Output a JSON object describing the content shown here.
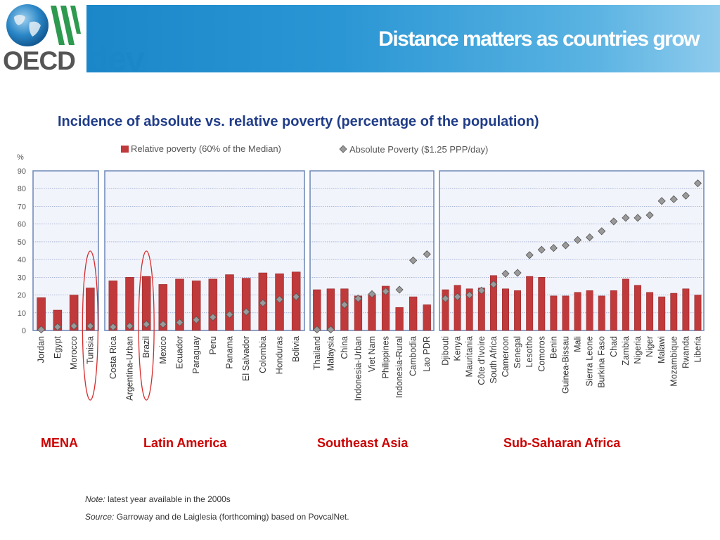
{
  "header": {
    "title": "Distance matters as countries grow",
    "logo_oecd": "OECD",
    "logo_dev": "dev",
    "accent_color": "#1b87c9"
  },
  "chart_title": "Incidence of absolute vs. relative poverty (percentage of the population)",
  "footer": {
    "note_label": "Note:",
    "note_text": "latest year  available in the 2000s",
    "source_label": "Source:",
    "source_text": "Garroway and de Laiglesia (forthcoming) based on PovcalNet."
  },
  "chart_data": {
    "type": "bar",
    "ylabel": "%",
    "ylim": [
      0,
      90
    ],
    "yticks": [
      0,
      10,
      20,
      30,
      40,
      50,
      60,
      70,
      80,
      90
    ],
    "legend": [
      {
        "name": "Relative poverty (60% of the Median)",
        "marker": "bar",
        "color": "#c0393b"
      },
      {
        "name": "Absolute Poverty ($1.25 PPP/day)",
        "marker": "diamond",
        "color": "#9a9a9a"
      }
    ],
    "groups": [
      {
        "name": "MENA",
        "categories": [
          "Jordan",
          "Egypt",
          "Morocco",
          "Tunisia"
        ],
        "relative": [
          18.5,
          11.5,
          20,
          24
        ],
        "absolute": [
          0.5,
          2,
          2.5,
          2.5
        ],
        "highlighted": [
          "Tunisia"
        ]
      },
      {
        "name": "Latin America",
        "categories": [
          "Costa Rica",
          "Argentina-Urban",
          "Brazil",
          "Mexico",
          "Ecuador",
          "Paraguay",
          "Peru",
          "Panama",
          "El Salvador",
          "Colombia",
          "Honduras",
          "Bolivia"
        ],
        "relative": [
          28,
          30,
          30.5,
          26,
          29,
          28,
          29,
          31.5,
          29.5,
          32.5,
          32,
          33
        ],
        "absolute": [
          2,
          2.5,
          3.5,
          3.5,
          4.5,
          6,
          7.5,
          9,
          10.5,
          15.5,
          17.5,
          19
        ],
        "highlighted": [
          "Brazil"
        ]
      },
      {
        "name": "Southeast Asia",
        "categories": [
          "Thailand",
          "Malaysia",
          "China",
          "Indonesia-Urban",
          "Viet Nam",
          "Philippines",
          "Indonesia-Rural",
          "Cambodia",
          "Lao PDR"
        ],
        "relative": [
          23,
          23.5,
          23.5,
          19.5,
          20,
          25,
          13,
          19,
          14.5
        ],
        "absolute": [
          0.5,
          0.5,
          14.5,
          18,
          20.5,
          22,
          23,
          39.5,
          43
        ],
        "highlighted": []
      },
      {
        "name": "Sub-Saharan Africa",
        "categories": [
          "Djibouti",
          "Kenya",
          "Mauritania",
          "Côte d'Ivoire",
          "South Africa",
          "Cameroon",
          "Senegal",
          "Lesotho",
          "Comoros",
          "Benin",
          "Guinea-Bissau",
          "Mali",
          "Sierra Leone",
          "Burkina Faso",
          "Chad",
          "Zambia",
          "Nigeria",
          "Niger",
          "Malawi",
          "Mozambique",
          "Rwanda",
          "Liberia"
        ],
        "relative": [
          23,
          25.5,
          23.5,
          24,
          31,
          23.5,
          22.5,
          30.5,
          30,
          19.5,
          19.5,
          21.5,
          22.5,
          19.5,
          22.5,
          29,
          25.5,
          21.5,
          19,
          21,
          23.5,
          20
        ],
        "absolute": [
          18,
          19,
          20,
          22.5,
          26,
          32,
          32.5,
          42.5,
          45.5,
          46.5,
          48,
          51,
          52.5,
          56,
          61.5,
          63.5,
          63.5,
          65,
          73,
          74,
          76,
          83
        ],
        "highlighted": []
      }
    ]
  }
}
